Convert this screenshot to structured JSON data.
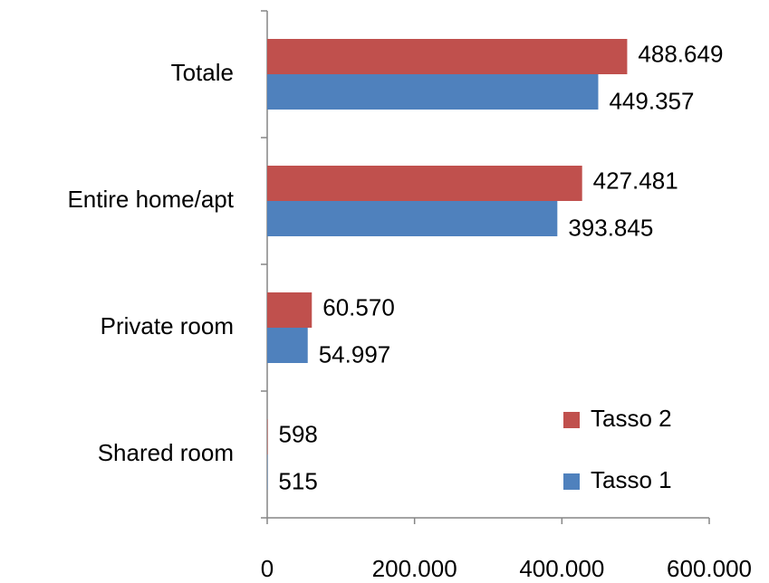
{
  "chart_data": {
    "type": "barh",
    "categories": [
      "Totale",
      "Entire home/apt",
      "Private room",
      "Shared room"
    ],
    "series": [
      {
        "name": "Tasso 2",
        "color": "#c0504d",
        "values": [
          488649,
          427481,
          60570,
          598
        ],
        "value_labels": [
          "488.649",
          "427.481",
          "60.570",
          "598"
        ]
      },
      {
        "name": "Tasso 1",
        "color": "#4f81bd",
        "values": [
          449357,
          393845,
          54997,
          515
        ],
        "value_labels": [
          "449.357",
          "393.845",
          "54.997",
          "515"
        ]
      }
    ],
    "xlim": [
      0,
      600000
    ],
    "xticks": [
      0,
      {
        "value": 200000,
        "label": "200.000"
      },
      {
        "value": 400000,
        "label": "400.000"
      },
      {
        "value": 600000,
        "label": "600.000"
      }
    ],
    "legend": "lower right"
  }
}
